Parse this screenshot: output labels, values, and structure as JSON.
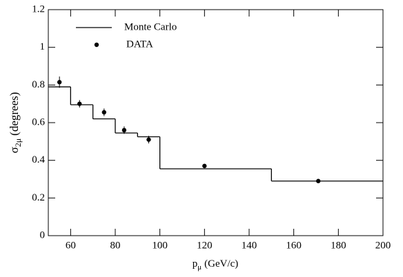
{
  "chart_data": {
    "type": "step-with-points",
    "xlabel": {
      "symbol": "p",
      "subscript": "μ",
      "unit": "(GeV/c)"
    },
    "ylabel": {
      "symbol": "σ",
      "subscript": "2μ",
      "unit": "(degrees)"
    },
    "xlim": [
      50,
      200
    ],
    "xticks": [
      60,
      80,
      100,
      120,
      140,
      160,
      180,
      200
    ],
    "ylim": [
      0,
      1.2
    ],
    "yticks": [
      0,
      0.2,
      0.4,
      0.6,
      0.8,
      1,
      1.2
    ],
    "series": [
      {
        "name": "Monte Carlo",
        "color": "#000000",
        "bins": [
          50,
          60,
          70,
          80,
          90,
          100,
          150,
          200
        ],
        "values": [
          0.79,
          0.695,
          0.62,
          0.545,
          0.525,
          0.355,
          0.29
        ]
      },
      {
        "name": "DATA",
        "color": "#000000",
        "x": [
          55,
          64,
          75,
          84,
          95,
          120,
          171
        ],
        "values": [
          0.815,
          0.7,
          0.655,
          0.56,
          0.51,
          0.37,
          0.29
        ],
        "errors": [
          0.03,
          0.02,
          0.02,
          0.02,
          0.02,
          0.01,
          0.005
        ]
      }
    ]
  }
}
